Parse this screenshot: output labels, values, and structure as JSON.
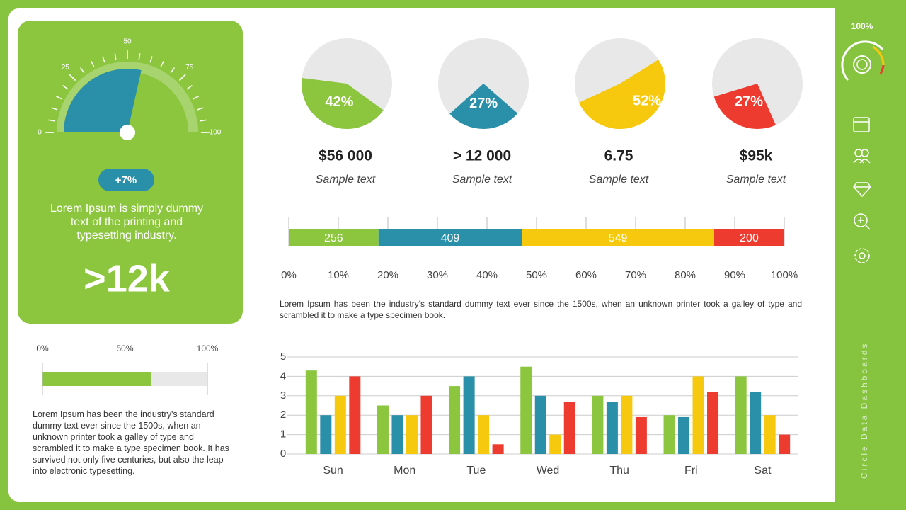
{
  "sidebar": {
    "percent": "100%",
    "title": "Circle Data Dashboards"
  },
  "card": {
    "change": "+7%",
    "text": "Lorem Ipsum is simply dummy text of the printing and typesetting industry.",
    "big": ">12k"
  },
  "notes": {
    "middle": "Lorem Ipsum has been the industry's standard dummy text ever since the 1500s, when an unknown printer took a galley of type and scrambled it to make a type specimen book.",
    "left": "Lorem Ipsum has been the industry's standard dummy text ever since the 1500s, when an unknown printer took a galley of type and scrambled it to make a type specimen book. It has survived not only five centuries, but also the leap into electronic typesetting."
  },
  "chart_data": [
    {
      "type": "gauge",
      "values": [
        57
      ],
      "color": "#2a8fa8",
      "xlim": [
        0,
        100
      ],
      "xticks": [
        0,
        25,
        50,
        75,
        100
      ]
    },
    {
      "type": "pie",
      "values": [
        42
      ],
      "value_labels": [
        "42%"
      ],
      "color": "#8cc63f",
      "title": "$56 000",
      "subtitle": "Sample text"
    },
    {
      "type": "pie",
      "values": [
        27
      ],
      "value_labels": [
        "27%"
      ],
      "color": "#2a8fa8",
      "title": "> 12 000",
      "subtitle": "Sample text"
    },
    {
      "type": "pie",
      "values": [
        52
      ],
      "value_labels": [
        "52%"
      ],
      "color": "#f6c90e",
      "title": "6.75",
      "subtitle": "Sample text"
    },
    {
      "type": "pie",
      "values": [
        27
      ],
      "value_labels": [
        "27%"
      ],
      "color": "#ee3b2f",
      "title": "$95k",
      "subtitle": "Sample text"
    },
    {
      "type": "stacked-bar",
      "series": [
        {
          "color": "#8cc63f",
          "values": [
            256
          ]
        },
        {
          "color": "#2a8fa8",
          "values": [
            409
          ]
        },
        {
          "color": "#f6c90e",
          "values": [
            549
          ]
        },
        {
          "color": "#ee3b2f",
          "values": [
            200
          ]
        }
      ],
      "xlim": [
        0,
        1414
      ],
      "xticks": [
        {
          "value": 0,
          "label": "0%"
        },
        {
          "value": 141.4,
          "label": "10%"
        },
        {
          "value": 282.8,
          "label": "20%"
        },
        {
          "value": 424.2,
          "label": "30%"
        },
        {
          "value": 565.6,
          "label": "40%"
        },
        {
          "value": 707,
          "label": "50%"
        },
        {
          "value": 848.4,
          "label": "60%"
        },
        {
          "value": 989.8,
          "label": "70%"
        },
        {
          "value": 1131.2,
          "label": "80%"
        },
        {
          "value": 1272.6,
          "label": "90%"
        },
        {
          "value": 1414,
          "label": "100%"
        }
      ],
      "grid": true
    },
    {
      "type": "bar",
      "categories": [
        "Sun",
        "Mon",
        "Tue",
        "Wed",
        "Thu",
        "Fri",
        "Sat"
      ],
      "series": [
        {
          "color": "#8cc63f",
          "values": [
            4.3,
            2.5,
            3.5,
            4.5,
            3,
            2,
            4
          ]
        },
        {
          "color": "#2a8fa8",
          "values": [
            2,
            2,
            4,
            3,
            2.7,
            1.9,
            3.2
          ]
        },
        {
          "color": "#f6c90e",
          "values": [
            3,
            2,
            2,
            1,
            3,
            4,
            2
          ]
        },
        {
          "color": "#ee3b2f",
          "values": [
            4,
            3,
            0.5,
            2.7,
            1.9,
            3.2,
            1
          ]
        }
      ],
      "ylim": [
        0,
        5
      ],
      "yticks": [
        0,
        1,
        2,
        3,
        4,
        5
      ],
      "grid": true
    },
    {
      "type": "progress",
      "values": [
        66
      ],
      "color": "#8cc63f",
      "xlim": [
        0,
        100
      ],
      "xticks": [
        {
          "value": 0,
          "label": "0%"
        },
        {
          "value": 50,
          "label": "50%"
        },
        {
          "value": 100,
          "label": "100%"
        }
      ]
    }
  ]
}
